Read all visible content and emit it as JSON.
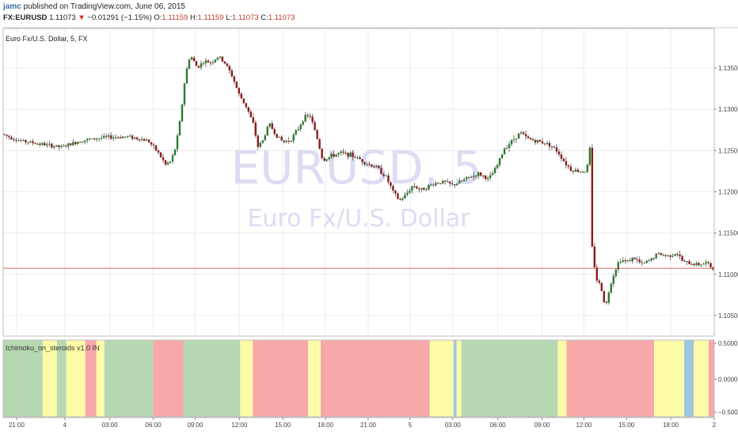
{
  "header": {
    "user": "jamc",
    "published": "published on TradingView.com, June 06, 2015",
    "symbol": "FX:EURUSD",
    "last": "1.11073",
    "change": "▼",
    "change_text": "−0.01291 (−1.15%)",
    "o_label": "O:",
    "o_val": "1.11159",
    "h_label": "H:",
    "h_val": "1.11159",
    "l_label": "L:",
    "l_val": "1.11073",
    "c_label": "C:",
    "c_val": "1.11073"
  },
  "main": {
    "title": "Euro Fx/U.S. Dollar, 5, FX",
    "watermark_symbol": "EURUSD, 5",
    "watermark_name": "Euro Fx/U.S. Dollar"
  },
  "indicator": {
    "title": "Ichimoku_on_steroids v1.0 IN"
  },
  "colors": {
    "up": "#2d7a2d",
    "down": "#8b1a1a",
    "wick": "#555555",
    "price_line": "#d9534f",
    "green_band": "#b5d8b0",
    "yellow_band": "#fdfba8",
    "red_band": "#f7a8a8",
    "blue_band": "#9ec8e0",
    "grid": "#ececec"
  },
  "chart_data": [
    {
      "type": "candlestick",
      "title": "Euro Fx/U.S. Dollar, 5, FX",
      "y_ticks": [
        "1.13500",
        "1.13000",
        "1.12500",
        "1.12000",
        "1.11500",
        "1.11000",
        "1.10500"
      ],
      "y_tick_values": [
        1.135,
        1.13,
        1.125,
        1.12,
        1.115,
        1.11,
        1.105
      ],
      "ylim": [
        1.1025,
        1.1398
      ],
      "x_ticks": [
        "21:00",
        "4",
        "03:00",
        "06:00",
        "09:00",
        "12:00",
        "15:00",
        "18:00",
        "21:00",
        "5",
        "03:00",
        "06:00",
        "09:00",
        "12:00",
        "15:00",
        "18:00",
        "2"
      ],
      "current_price": 1.11073,
      "price_path": [
        [
          0,
          1.127
        ],
        [
          22,
          1.1262
        ],
        [
          48,
          1.1258
        ],
        [
          75,
          1.1254
        ],
        [
          100,
          1.1262
        ],
        [
          130,
          1.1266
        ],
        [
          160,
          1.1267
        ],
        [
          185,
          1.1262
        ],
        [
          198,
          1.1247
        ],
        [
          207,
          1.1233
        ],
        [
          214,
          1.1237
        ],
        [
          220,
          1.1255
        ],
        [
          226,
          1.129
        ],
        [
          232,
          1.134
        ],
        [
          238,
          1.1366
        ],
        [
          247,
          1.1351
        ],
        [
          256,
          1.1358
        ],
        [
          265,
          1.1357
        ],
        [
          274,
          1.1364
        ],
        [
          283,
          1.1355
        ],
        [
          292,
          1.1339
        ],
        [
          300,
          1.1318
        ],
        [
          310,
          1.1302
        ],
        [
          318,
          1.1282
        ],
        [
          324,
          1.1255
        ],
        [
          330,
          1.1262
        ],
        [
          338,
          1.1283
        ],
        [
          346,
          1.127
        ],
        [
          356,
          1.126
        ],
        [
          366,
          1.1264
        ],
        [
          374,
          1.1275
        ],
        [
          382,
          1.129
        ],
        [
          390,
          1.1292
        ],
        [
          398,
          1.1268
        ],
        [
          406,
          1.1238
        ],
        [
          416,
          1.1243
        ],
        [
          428,
          1.1247
        ],
        [
          440,
          1.1245
        ],
        [
          452,
          1.124
        ],
        [
          464,
          1.1233
        ],
        [
          474,
          1.123
        ],
        [
          486,
          1.1218
        ],
        [
          495,
          1.12
        ],
        [
          503,
          1.1189
        ],
        [
          511,
          1.1196
        ],
        [
          520,
          1.1208
        ],
        [
          530,
          1.1202
        ],
        [
          540,
          1.1207
        ],
        [
          550,
          1.1211
        ],
        [
          560,
          1.1212
        ],
        [
          570,
          1.1208
        ],
        [
          580,
          1.1212
        ],
        [
          592,
          1.1218
        ],
        [
          604,
          1.1222
        ],
        [
          616,
          1.1215
        ],
        [
          626,
          1.123
        ],
        [
          636,
          1.1253
        ],
        [
          646,
          1.1262
        ],
        [
          656,
          1.1272
        ],
        [
          664,
          1.1265
        ],
        [
          674,
          1.1262
        ],
        [
          684,
          1.126
        ],
        [
          694,
          1.1257
        ],
        [
          704,
          1.1248
        ],
        [
          712,
          1.1236
        ],
        [
          720,
          1.1227
        ],
        [
          730,
          1.1225
        ],
        [
          740,
          1.1225
        ],
        [
          744,
          1.1252
        ],
        [
          747,
          1.1132
        ],
        [
          752,
          1.1095
        ],
        [
          758,
          1.1085
        ],
        [
          764,
          1.106
        ],
        [
          770,
          1.1088
        ],
        [
          776,
          1.1105
        ],
        [
          782,
          1.1118
        ],
        [
          790,
          1.1115
        ],
        [
          800,
          1.112
        ],
        [
          810,
          1.1112
        ],
        [
          820,
          1.1117
        ],
        [
          830,
          1.1125
        ],
        [
          842,
          1.1122
        ],
        [
          854,
          1.1126
        ],
        [
          862,
          1.1115
        ],
        [
          872,
          1.1113
        ],
        [
          882,
          1.1112
        ],
        [
          892,
          1.1114
        ],
        [
          899,
          1.1107
        ]
      ]
    },
    {
      "type": "band",
      "title": "Ichimoku_on_steroids v1.0 IN",
      "y_ticks": [
        "0.5000",
        "0.0000",
        "−0.5000"
      ],
      "bands": [
        [
          "green",
          0,
          50
        ],
        [
          "yellow",
          50,
          68
        ],
        [
          "green",
          68,
          80
        ],
        [
          "yellow",
          80,
          104
        ],
        [
          "red",
          104,
          118
        ],
        [
          "yellow",
          118,
          128
        ],
        [
          "green",
          128,
          190
        ],
        [
          "red",
          190,
          228
        ],
        [
          "green",
          228,
          300
        ],
        [
          "yellow",
          300,
          316
        ],
        [
          "red",
          316,
          386
        ],
        [
          "yellow",
          386,
          402
        ],
        [
          "red",
          402,
          540
        ],
        [
          "yellow",
          540,
          570
        ],
        [
          "blue",
          570,
          574
        ],
        [
          "yellow",
          574,
          580
        ],
        [
          "green",
          580,
          702
        ],
        [
          "yellow",
          702,
          713
        ],
        [
          "red",
          713,
          824
        ],
        [
          "yellow",
          824,
          862
        ],
        [
          "blue",
          862,
          874
        ],
        [
          "yellow",
          874,
          893
        ],
        [
          "red",
          893,
          900
        ]
      ]
    }
  ]
}
